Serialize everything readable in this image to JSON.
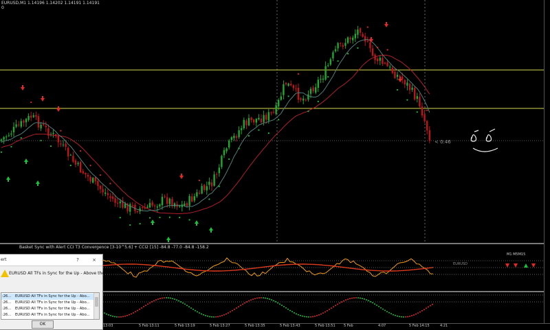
{
  "main": {
    "symbol_header": "EURUSD,M1  1.14196 1.14202 1.14191 1.14191",
    "zero_label": "0",
    "price_marker": "< 0:46",
    "colors": {
      "bull": "#1faa2e",
      "bear": "#c0141a",
      "ma_slow": "#b21e2a",
      "ma_fast": "#4f7f7a",
      "level": "#d9d94a",
      "buy_arrow": "#19c23b",
      "sell_arrow": "#e2282a"
    }
  },
  "oscillator": {
    "header": "Basket Sync with Alert  CCI T3 Convergence [3-10^5.6] + CCI2 [15] -84.8 -77.0 -84.8 -158.2",
    "badge_left": "EURUSD",
    "badge_right": "M1  M5M15"
  },
  "alert": {
    "title": "ert",
    "help_button": "?",
    "close_button": "×",
    "message": "EURUSD All TFs in Sync for the Up - Above the",
    "rows": [
      {
        "time": ":26...",
        "text": "EURUSD All TFs in Sync for the Up - Abo..."
      },
      {
        "time": ":26...",
        "text": "EURUSD All TFs in Sync for the Up - Abo..."
      },
      {
        "time": ":26...",
        "text": "EURUSD All TFs in Sync for the Up - Abo..."
      },
      {
        "time": ":26...",
        "text": "EURUSD All TFs in Sync for the Up - Abo..."
      }
    ],
    "ok_button": "OK"
  },
  "time_axis": [
    "13:03",
    "5 Feb 13:11",
    "5 Feb 13:19",
    "5 Feb 13:27",
    "5 Feb 13:35",
    "5 Feb 13:43",
    "5 Feb 13:51",
    "5 Feb",
    "4:07",
    "5 Feb 14:15",
    "4:21"
  ]
}
